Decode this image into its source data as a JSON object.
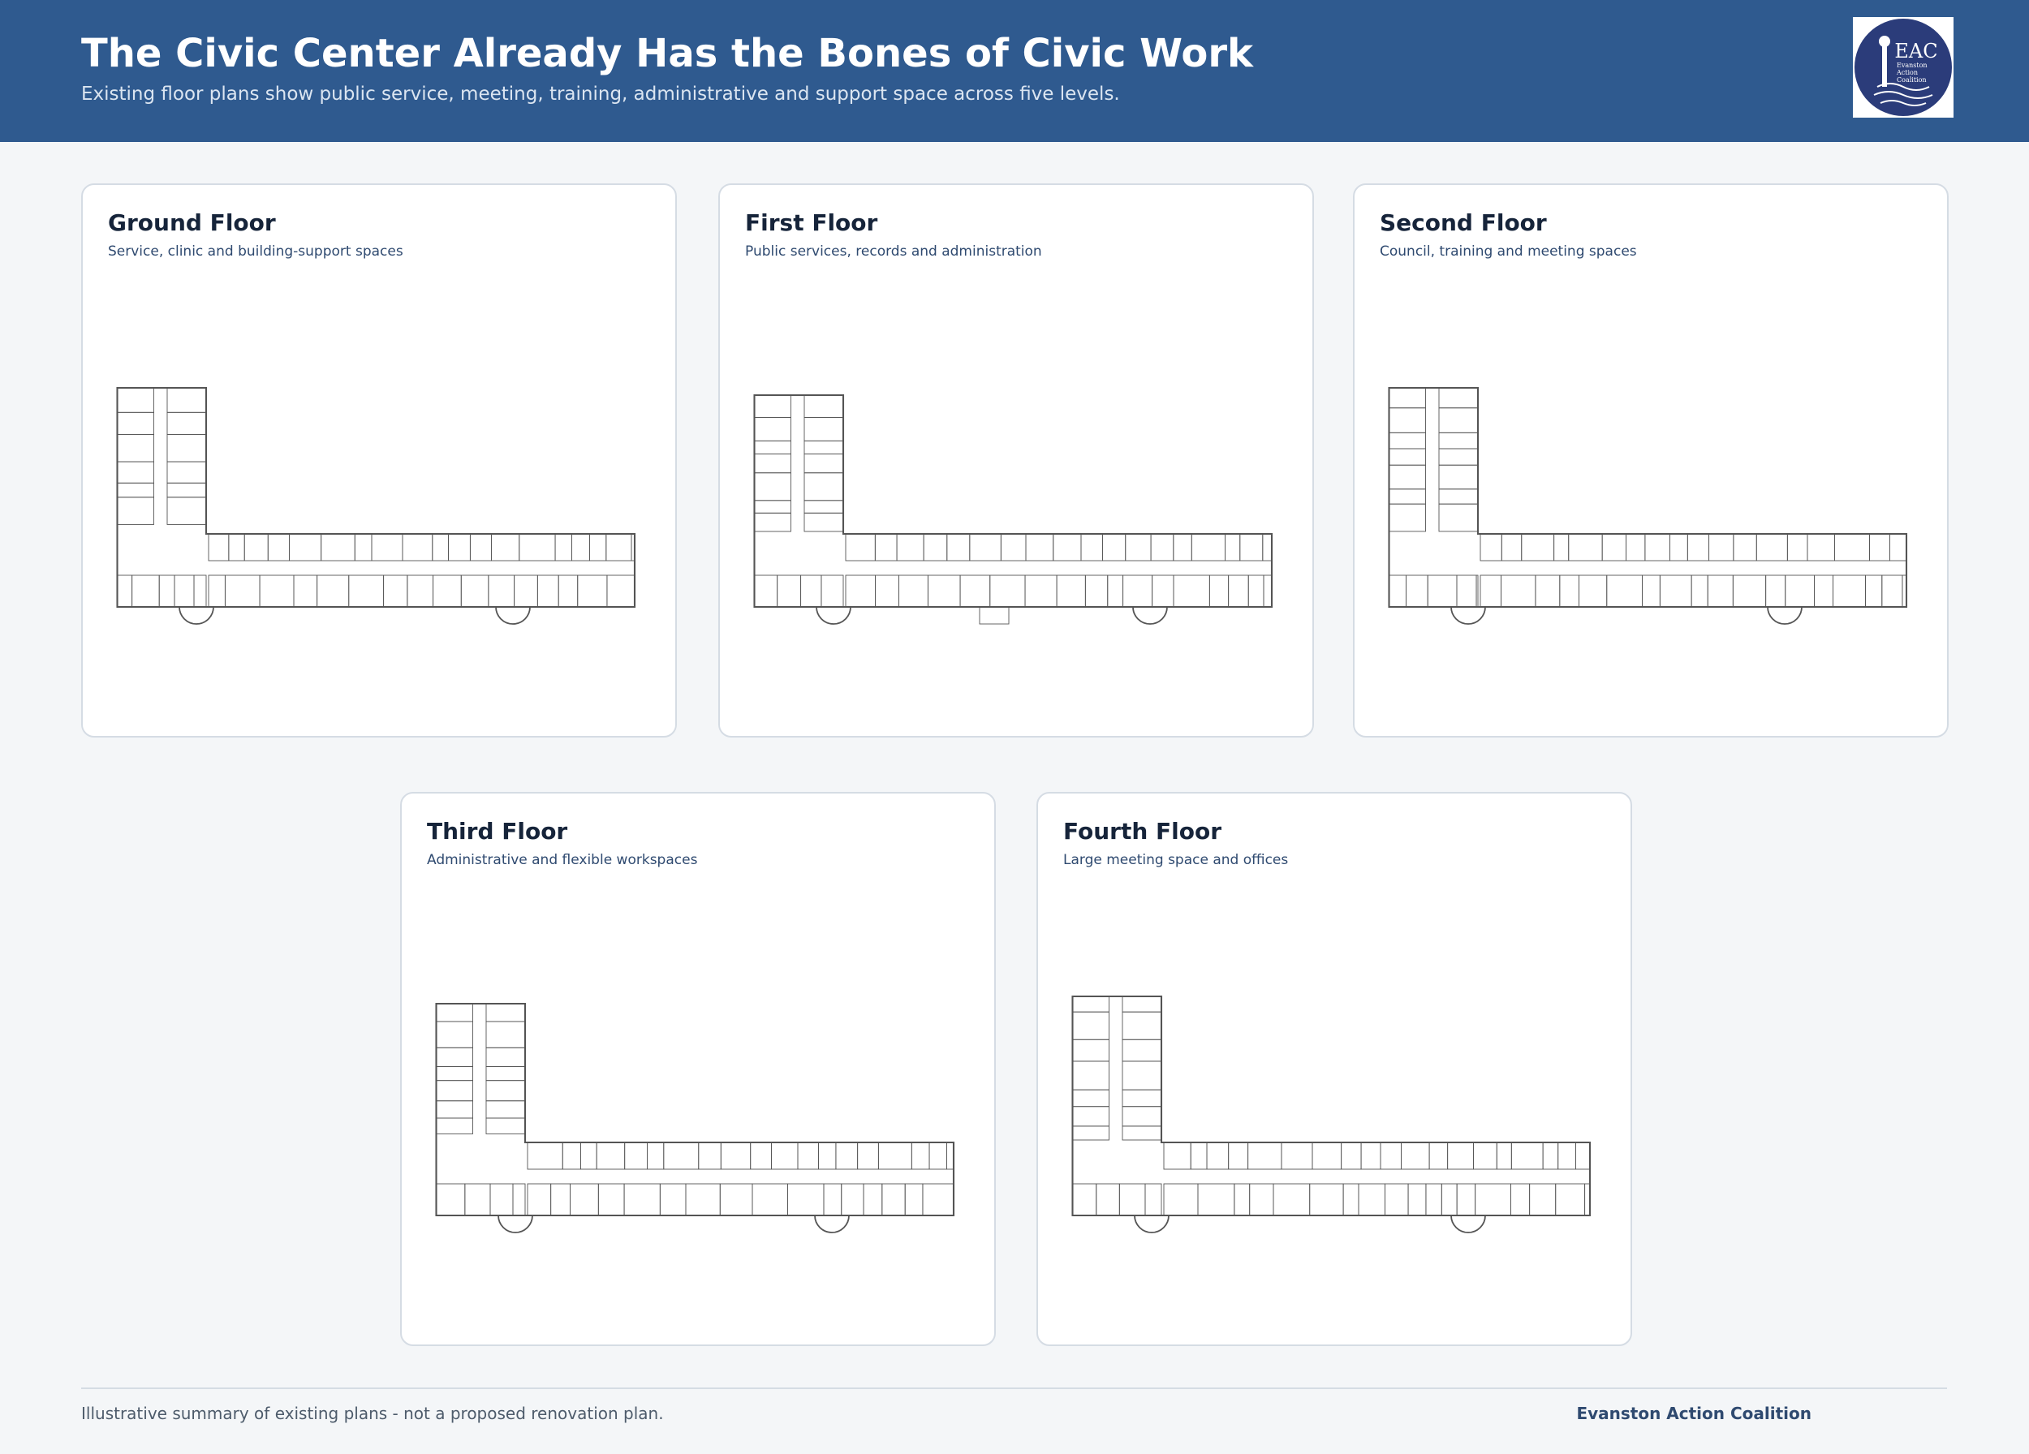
{
  "header": {
    "title": "The Civic Center Already Has the Bones of Civic Work",
    "subtitle": "Existing floor plans show public service, meeting, training, administrative and support space across five levels."
  },
  "logo": {
    "initials": "EAC",
    "lines": [
      "Evanston",
      "Action",
      "Coalition"
    ]
  },
  "floors": [
    {
      "title": "Ground Floor",
      "subtitle": "Service, clinic and building-support spaces"
    },
    {
      "title": "First Floor",
      "subtitle": "Public services, records and administration"
    },
    {
      "title": "Second Floor",
      "subtitle": "Council, training and meeting spaces"
    },
    {
      "title": "Third Floor",
      "subtitle": "Administrative and flexible workspaces"
    },
    {
      "title": "Fourth Floor",
      "subtitle": "Large meeting space and offices"
    }
  ],
  "footer": {
    "note": "Illustrative summary of existing plans - not a proposed renovation plan.",
    "credit": "Evanston Action Coalition"
  }
}
